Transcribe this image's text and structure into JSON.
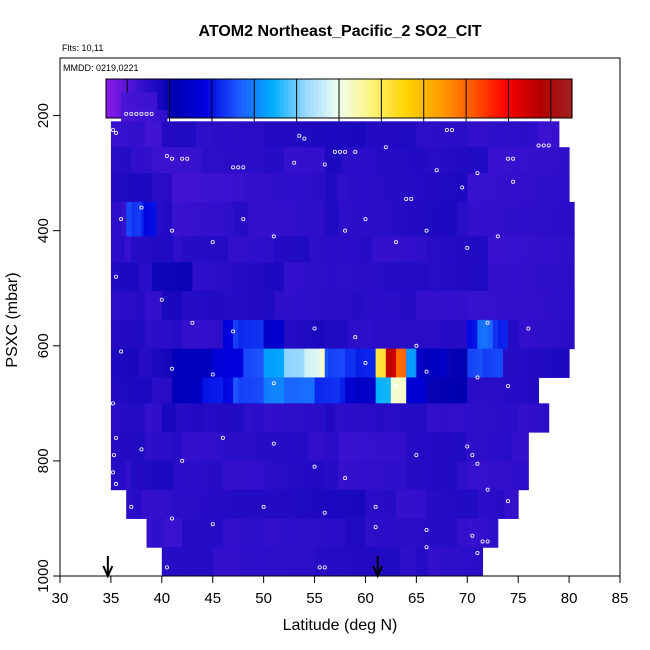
{
  "chart_data": {
    "type": "heatmap",
    "title": "ATOM2 Northeast_Pacific_2 SO2_CIT",
    "annotations": {
      "flights": "Flts: 10,11",
      "dates": "MMDD: 0219,0221"
    },
    "xlabel": "Latitude (deg N)",
    "ylabel": "PSXC (mbar)",
    "xlim": [
      30,
      85
    ],
    "ylim": [
      1000,
      100
    ],
    "xticks": [
      "30",
      "35",
      "40",
      "45",
      "50",
      "55",
      "60",
      "65",
      "70",
      "75",
      "80",
      "85"
    ],
    "yticks": [
      "200",
      "400",
      "600",
      "800",
      "1000"
    ],
    "colorbar": {
      "min": -50,
      "max": 1050,
      "ticks": [
        "0",
        "100",
        "300",
        "500",
        "700",
        "900"
      ],
      "colors": [
        "#8B1AE8",
        "#3A12D0",
        "#0000B0",
        "#0000E0",
        "#1E5BFF",
        "#00AEFF",
        "#9AD8FF",
        "#F0FFF0",
        "#FFF27A",
        "#FFD400",
        "#FFA000",
        "#FF5A00",
        "#FF0000",
        "#B40000",
        "#A02020"
      ]
    },
    "markers": {
      "arrows_at_latitude": [
        34.7,
        61.2
      ]
    },
    "rows": [
      {
        "p": [
          160,
          190
        ],
        "segs": [
          [
            36,
            39.5,
            25
          ]
        ]
      },
      {
        "p": [
          190,
          210
        ],
        "segs": [
          [
            36,
            39.5,
            25
          ],
          [
            39.5,
            40.5,
            40
          ]
        ]
      },
      {
        "p": [
          210,
          255
        ],
        "segs": [
          [
            35,
            40,
            30
          ],
          [
            40,
            50,
            55
          ],
          [
            50,
            60,
            65
          ],
          [
            60,
            70,
            55
          ],
          [
            70,
            76,
            45
          ],
          [
            76,
            79,
            35
          ]
        ]
      },
      {
        "p": [
          255,
          300
        ],
        "segs": [
          [
            35,
            38,
            50
          ],
          [
            38,
            44,
            35
          ],
          [
            44,
            56,
            45
          ],
          [
            56,
            66,
            60
          ],
          [
            66,
            72,
            55
          ],
          [
            72,
            80,
            40
          ]
        ]
      },
      {
        "p": [
          300,
          350
        ],
        "segs": [
          [
            35,
            41,
            60
          ],
          [
            41,
            48,
            25
          ],
          [
            48,
            56,
            40
          ],
          [
            56,
            63,
            55
          ],
          [
            63,
            70,
            65
          ],
          [
            70,
            80,
            40
          ]
        ]
      },
      {
        "p": [
          350,
          410
        ],
        "segs": [
          [
            35,
            36.5,
            40
          ],
          [
            36.5,
            38,
            240
          ],
          [
            38,
            39.5,
            200
          ],
          [
            39.5,
            41,
            60
          ],
          [
            41,
            47,
            35
          ],
          [
            47,
            56,
            45
          ],
          [
            56,
            64,
            55
          ],
          [
            64,
            70,
            60
          ],
          [
            70,
            80.5,
            45
          ]
        ]
      },
      {
        "p": [
          410,
          455
        ],
        "segs": [
          [
            35,
            37,
            45
          ],
          [
            37,
            42,
            55
          ],
          [
            42,
            51,
            50
          ],
          [
            51,
            58,
            55
          ],
          [
            58,
            66,
            45
          ],
          [
            66,
            72,
            55
          ],
          [
            72,
            80.5,
            40
          ]
        ]
      },
      {
        "p": [
          455,
          505
        ],
        "segs": [
          [
            35,
            39,
            60
          ],
          [
            39,
            43,
            85
          ],
          [
            43,
            48,
            50
          ],
          [
            48,
            52,
            60
          ],
          [
            52,
            57,
            45
          ],
          [
            57,
            66,
            50
          ],
          [
            66,
            72,
            55
          ],
          [
            72,
            80.5,
            45
          ]
        ]
      },
      {
        "p": [
          505,
          555
        ],
        "segs": [
          [
            35,
            40,
            45
          ],
          [
            40,
            46,
            65
          ],
          [
            46,
            52,
            55
          ],
          [
            52,
            60,
            50
          ],
          [
            60,
            70,
            45
          ],
          [
            70,
            80.5,
            40
          ]
        ]
      },
      {
        "p": [
          555,
          605
        ],
        "segs": [
          [
            35,
            40,
            55
          ],
          [
            40,
            46,
            45
          ],
          [
            46,
            47,
            180
          ],
          [
            47,
            50,
            230
          ],
          [
            50,
            52,
            150
          ],
          [
            52,
            56,
            65
          ],
          [
            56,
            70,
            55
          ],
          [
            70,
            71,
            200
          ],
          [
            71,
            72.5,
            280
          ],
          [
            72.5,
            74,
            220
          ],
          [
            74,
            80.5,
            50
          ]
        ]
      },
      {
        "p": [
          605,
          655
        ],
        "segs": [
          [
            35,
            39,
            65
          ],
          [
            39,
            41,
            70
          ],
          [
            41,
            45,
            130
          ],
          [
            45,
            48,
            180
          ],
          [
            48,
            50,
            250
          ],
          [
            50,
            52,
            330
          ],
          [
            52,
            54,
            420
          ],
          [
            54,
            55.5,
            480
          ],
          [
            55.5,
            56,
            520
          ],
          [
            56,
            58,
            250
          ],
          [
            58,
            61,
            220
          ],
          [
            61,
            62,
            620
          ],
          [
            62,
            63,
            950
          ],
          [
            63,
            64,
            800
          ],
          [
            64,
            65,
            320
          ],
          [
            65,
            68,
            140
          ],
          [
            68,
            70,
            100
          ],
          [
            70,
            71.5,
            250
          ],
          [
            71.5,
            73.5,
            240
          ],
          [
            73.5,
            80,
            60
          ]
        ]
      },
      {
        "p": [
          655,
          700
        ],
        "segs": [
          [
            35,
            41,
            60
          ],
          [
            41,
            44,
            130
          ],
          [
            44,
            47,
            200
          ],
          [
            47,
            50,
            250
          ],
          [
            50,
            52,
            300
          ],
          [
            52,
            55,
            280
          ],
          [
            55,
            58,
            220
          ],
          [
            58,
            61,
            150
          ],
          [
            61,
            62.5,
            350
          ],
          [
            62.5,
            64,
            520
          ],
          [
            64,
            66,
            160
          ],
          [
            66,
            70,
            100
          ],
          [
            70,
            77,
            55
          ]
        ]
      },
      {
        "p": [
          700,
          750
        ],
        "segs": [
          [
            35,
            40,
            50
          ],
          [
            40,
            44,
            65
          ],
          [
            44,
            50,
            55
          ],
          [
            50,
            56,
            45
          ],
          [
            56,
            62,
            55
          ],
          [
            62,
            68,
            50
          ],
          [
            68,
            75,
            45
          ],
          [
            75,
            78,
            40
          ]
        ]
      },
      {
        "p": [
          750,
          800
        ],
        "segs": [
          [
            35,
            40,
            55
          ],
          [
            40,
            46,
            45
          ],
          [
            46,
            56,
            50
          ],
          [
            56,
            64,
            40
          ],
          [
            64,
            71,
            55
          ],
          [
            71,
            76,
            45
          ]
        ]
      },
      {
        "p": [
          800,
          850
        ],
        "segs": [
          [
            35,
            37,
            50
          ],
          [
            37,
            42,
            60
          ],
          [
            42,
            50,
            45
          ],
          [
            50,
            56,
            55
          ],
          [
            56,
            64,
            45
          ],
          [
            64,
            70,
            55
          ],
          [
            70,
            76,
            40
          ]
        ]
      },
      {
        "p": [
          850,
          900
        ],
        "segs": [
          [
            36.5,
            41,
            45
          ],
          [
            41,
            50,
            55
          ],
          [
            50,
            60,
            65
          ],
          [
            60,
            66,
            45
          ],
          [
            66,
            71,
            55
          ],
          [
            71,
            75,
            45
          ]
        ]
      },
      {
        "p": [
          900,
          950
        ],
        "segs": [
          [
            38.5,
            42,
            35
          ],
          [
            42,
            50,
            50
          ],
          [
            50,
            58,
            45
          ],
          [
            58,
            64,
            55
          ],
          [
            64,
            70,
            50
          ],
          [
            70,
            73,
            40
          ]
        ]
      },
      {
        "p": [
          950,
          1000
        ],
        "segs": [
          [
            40,
            55,
            50
          ],
          [
            55,
            65,
            55
          ],
          [
            65,
            71.5,
            50
          ]
        ]
      }
    ],
    "samples": [
      [
        36.5,
        197
      ],
      [
        37,
        197
      ],
      [
        37.5,
        197
      ],
      [
        38,
        197
      ],
      [
        38.5,
        197
      ],
      [
        39,
        197
      ],
      [
        35.2,
        225
      ],
      [
        35.5,
        230
      ],
      [
        42,
        275
      ],
      [
        42.5,
        275
      ],
      [
        47,
        290
      ],
      [
        47.5,
        290
      ],
      [
        48,
        290
      ],
      [
        53,
        282
      ],
      [
        57,
        263
      ],
      [
        57.5,
        263
      ],
      [
        58,
        263
      ],
      [
        59,
        263
      ],
      [
        53.5,
        235
      ],
      [
        64,
        345
      ],
      [
        64.5,
        345
      ],
      [
        68,
        225
      ],
      [
        68.5,
        225
      ],
      [
        74,
        275
      ],
      [
        74.5,
        275
      ],
      [
        77,
        252
      ],
      [
        77.5,
        252
      ],
      [
        78,
        252
      ],
      [
        40.5,
        270
      ],
      [
        41,
        275
      ],
      [
        54,
        240
      ],
      [
        56,
        285
      ],
      [
        62,
        255
      ],
      [
        67,
        295
      ],
      [
        69.5,
        325
      ],
      [
        71,
        300
      ],
      [
        74.5,
        315
      ],
      [
        36,
        380
      ],
      [
        38,
        360
      ],
      [
        41,
        400
      ],
      [
        45,
        420
      ],
      [
        48,
        380
      ],
      [
        51,
        410
      ],
      [
        58,
        400
      ],
      [
        60,
        380
      ],
      [
        63,
        420
      ],
      [
        66,
        400
      ],
      [
        70,
        430
      ],
      [
        73,
        410
      ],
      [
        35.5,
        480
      ],
      [
        40,
        520
      ],
      [
        43,
        560
      ],
      [
        47,
        575
      ],
      [
        55,
        570
      ],
      [
        59,
        585
      ],
      [
        65,
        600
      ],
      [
        72,
        560
      ],
      [
        76,
        570
      ],
      [
        36,
        610
      ],
      [
        41,
        640
      ],
      [
        45,
        650
      ],
      [
        51,
        665
      ],
      [
        60,
        630
      ],
      [
        63,
        670
      ],
      [
        66,
        645
      ],
      [
        71,
        655
      ],
      [
        74,
        670
      ],
      [
        35.2,
        700
      ],
      [
        35.5,
        760
      ],
      [
        35.3,
        790
      ],
      [
        35.2,
        820
      ],
      [
        35.5,
        840
      ],
      [
        38,
        780
      ],
      [
        42,
        800
      ],
      [
        46,
        760
      ],
      [
        51,
        770
      ],
      [
        55,
        810
      ],
      [
        58,
        830
      ],
      [
        65,
        790
      ],
      [
        70,
        775
      ],
      [
        70.5,
        790
      ],
      [
        71,
        805
      ],
      [
        72,
        850
      ],
      [
        74,
        870
      ],
      [
        37,
        880
      ],
      [
        41,
        900
      ],
      [
        45,
        910
      ],
      [
        50,
        880
      ],
      [
        56,
        890
      ],
      [
        61,
        880
      ],
      [
        66,
        920
      ],
      [
        70.5,
        930
      ],
      [
        71.5,
        940
      ],
      [
        72,
        940
      ],
      [
        40.5,
        985
      ],
      [
        55.5,
        985
      ],
      [
        56,
        985
      ],
      [
        61,
        915
      ],
      [
        66,
        950
      ],
      [
        71,
        960
      ]
    ]
  }
}
